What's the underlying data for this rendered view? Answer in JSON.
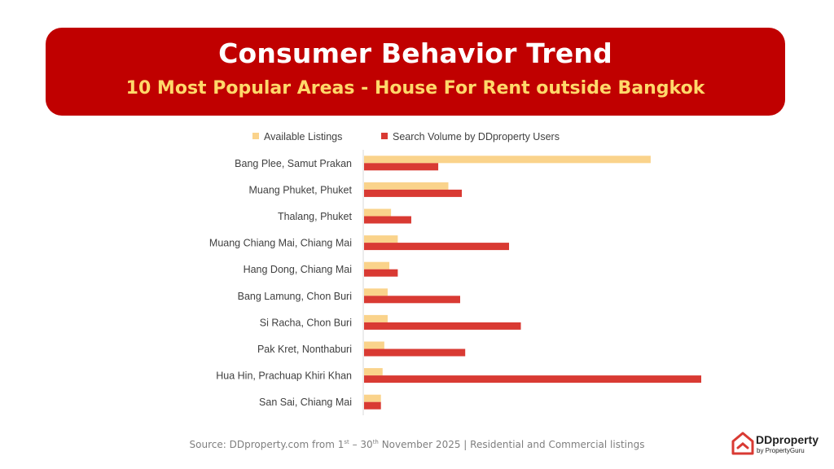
{
  "header": {
    "title": "Consumer Behavior Trend",
    "subtitle": "10 Most Popular Areas - House For Rent outside Bangkok"
  },
  "footer": {
    "source_prefix": "Source: DDproperty.com from 1",
    "source_sup1": "st",
    "source_middle": " – 30",
    "source_sup2": "th",
    "source_suffix": " November 2025 | Residential and Commercial listings"
  },
  "logo": {
    "brand": "DDproperty",
    "byline": "by PropertyGuru"
  },
  "colors": {
    "listings": "#fad38b",
    "search": "#d93a33",
    "banner": "#c00000"
  },
  "chart_data": {
    "type": "bar",
    "orientation": "horizontal",
    "categories": [
      "Bang Plee, Samut Prakan",
      "Muang Phuket, Phuket",
      "Thalang, Phuket",
      "Muang Chiang Mai, Chiang Mai",
      "Hang Dong, Chiang Mai",
      "Bang Lamung, Chon Buri",
      "Si Racha, Chon Buri",
      "Pak Kret, Nonthaburi",
      "Hua Hin, Prachuap Khiri Khan",
      "San Sai, Chiang Mai"
    ],
    "series": [
      {
        "name": "Available Listings",
        "color": "#fad38b",
        "values": [
          85,
          25,
          8,
          10,
          7.5,
          7,
          7,
          6,
          5.5,
          5
        ]
      },
      {
        "name": "Search Volume by DDproperty Users",
        "color": "#d93a33",
        "values": [
          22,
          29,
          14,
          43,
          10,
          28.5,
          46.5,
          30,
          100,
          5
        ]
      }
    ],
    "xlim": [
      0,
      100
    ],
    "axis_labels_shown": false,
    "grid": false,
    "legend": "top"
  }
}
